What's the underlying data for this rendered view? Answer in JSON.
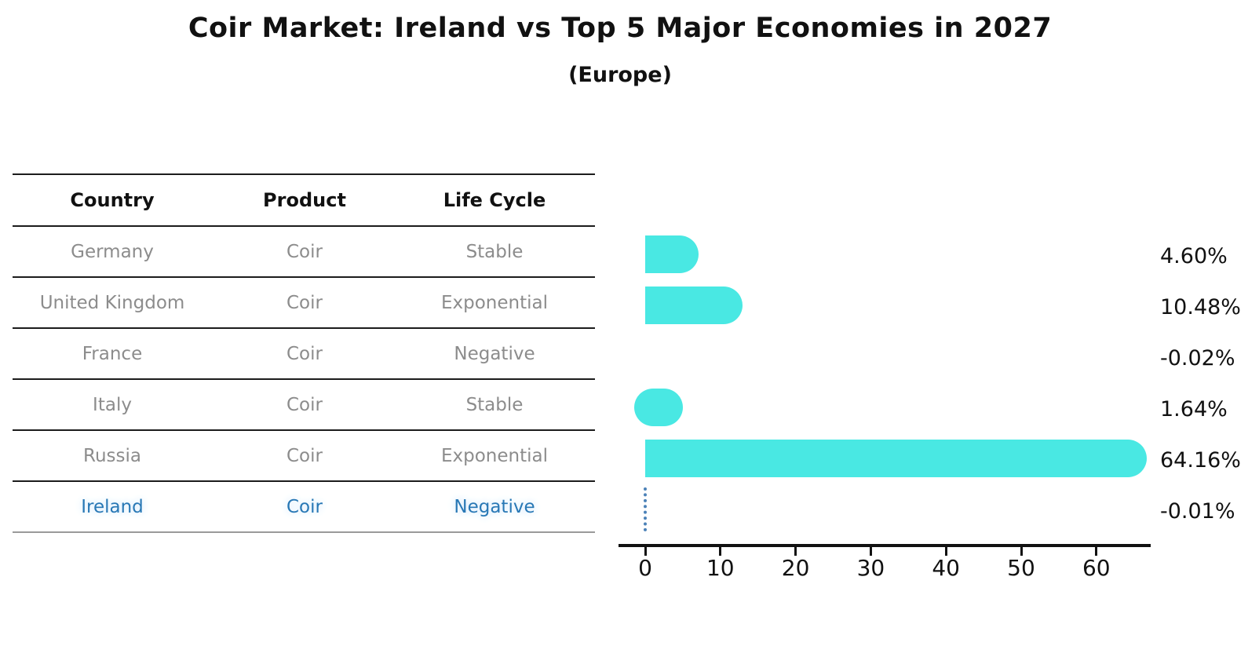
{
  "title": "Coir Market: Ireland vs Top 5 Major Economies in 2027",
  "subtitle": "(Europe)",
  "table": {
    "headers": [
      "Country",
      "Product",
      "Life Cycle"
    ],
    "rows": [
      {
        "country": "Germany",
        "product": "Coir",
        "life_cycle": "Stable",
        "highlight": false
      },
      {
        "country": "United Kingdom",
        "product": "Coir",
        "life_cycle": "Exponential",
        "highlight": false
      },
      {
        "country": "France",
        "product": "Coir",
        "life_cycle": "Negative",
        "highlight": false
      },
      {
        "country": "Italy",
        "product": "Coir",
        "life_cycle": "Stable",
        "highlight": false
      },
      {
        "country": "Russia",
        "product": "Coir",
        "life_cycle": "Exponential",
        "highlight": false
      },
      {
        "country": "Ireland",
        "product": "Coir",
        "life_cycle": "Negative",
        "highlight": true
      }
    ]
  },
  "chart_data": {
    "type": "bar",
    "orientation": "horizontal",
    "title": "Coir Market: Ireland vs Top 5 Major Economies in 2027",
    "subtitle": "(Europe)",
    "categories": [
      "Germany",
      "United Kingdom",
      "France",
      "Italy",
      "Russia",
      "Ireland"
    ],
    "values": [
      4.6,
      10.48,
      -0.02,
      1.64,
      64.16,
      -0.01
    ],
    "value_labels": [
      "4.60%",
      "10.48%",
      "-0.02%",
      "1.64%",
      "64.16%",
      "-0.01%"
    ],
    "x_ticks": [
      0,
      10,
      20,
      30,
      40,
      50,
      60
    ],
    "xlim": [
      -3.5,
      67.2
    ],
    "grid": false,
    "legend": "none",
    "highlight_country": "Ireland",
    "zero_marker_for": "Ireland"
  },
  "colors": {
    "bar": "#49e8e3",
    "row_text": "#8c8c8c",
    "highlight_text": "#2878b5",
    "zero_marker": "#4c82b8",
    "axis": "#111111",
    "line": "#1c1c1c",
    "bottom_line": "#9a9a9a"
  }
}
